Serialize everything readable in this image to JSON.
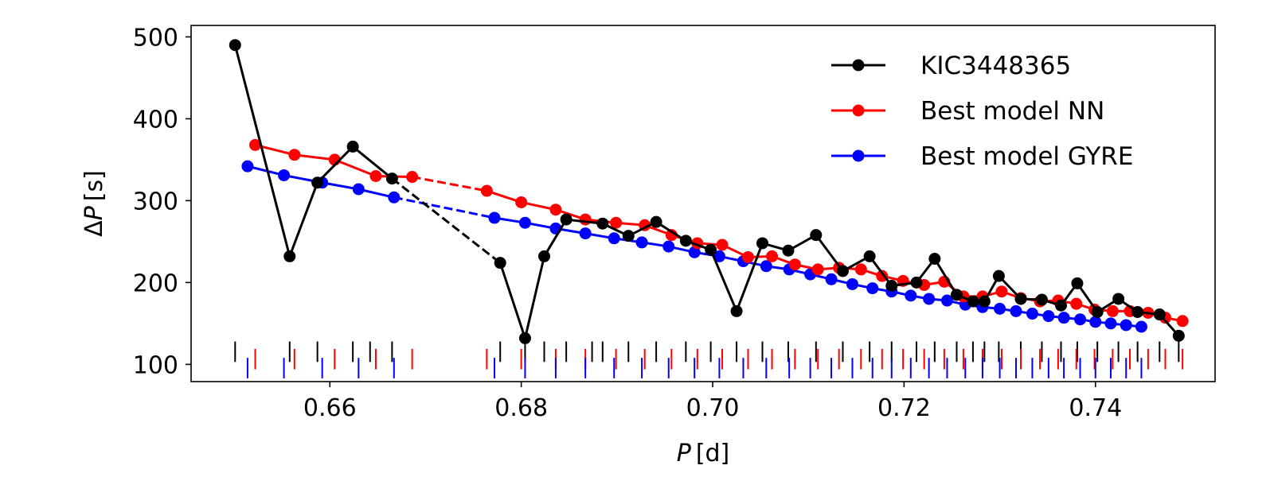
{
  "chart_data": {
    "type": "line",
    "xlabel_var": "P",
    "xlabel_unit": "[d]",
    "ylabel_prefix": "Δ",
    "ylabel_var": "P",
    "ylabel_unit": "[s]",
    "xlim": [
      0.6455,
      0.7525
    ],
    "ylim": [
      79,
      514
    ],
    "xticks": [
      0.66,
      0.68,
      0.7,
      0.72,
      0.74
    ],
    "xtick_labels": [
      "0.66",
      "0.68",
      "0.70",
      "0.72",
      "0.74"
    ],
    "yticks": [
      100,
      200,
      300,
      400,
      500
    ],
    "ytick_labels": [
      "100",
      "200",
      "300",
      "400",
      "500"
    ],
    "legend_position": "top-right",
    "series": [
      {
        "name": "KIC3448365",
        "color": "#000000",
        "segments": [
          [
            [
              0.6501,
              490
            ],
            [
              0.6558,
              232
            ],
            [
              0.6587,
              322
            ],
            [
              0.6624,
              366
            ],
            [
              0.6665,
              327
            ]
          ],
          [
            [
              0.6778,
              224
            ],
            [
              0.6804,
              132
            ],
            [
              0.6824,
              232
            ],
            [
              0.6847,
              277
            ],
            [
              0.6885,
              272
            ],
            [
              0.6912,
              257
            ],
            [
              0.6941,
              274
            ],
            [
              0.6972,
              251
            ],
            [
              0.6998,
              240
            ],
            [
              0.7025,
              165
            ],
            [
              0.7052,
              248
            ],
            [
              0.7079,
              239
            ],
            [
              0.7108,
              258
            ],
            [
              0.7136,
              214
            ],
            [
              0.7164,
              232
            ],
            [
              0.7187,
              196
            ],
            [
              0.7213,
              200
            ],
            [
              0.7232,
              229
            ],
            [
              0.7255,
              185
            ],
            [
              0.7272,
              177
            ],
            [
              0.7284,
              177
            ],
            [
              0.7299,
              208
            ],
            [
              0.7322,
              180
            ],
            [
              0.7344,
              179
            ],
            [
              0.7364,
              172
            ],
            [
              0.7381,
              199
            ],
            [
              0.7402,
              164
            ],
            [
              0.7424,
              180
            ],
            [
              0.7444,
              164
            ],
            [
              0.7467,
              161
            ],
            [
              0.7487,
              135
            ]
          ]
        ],
        "dashed_link": [
          [
            0.6665,
            327
          ],
          [
            0.6778,
            224
          ]
        ],
        "mode_periods": [
          0.6501,
          0.6558,
          0.6587,
          0.6624,
          0.6642,
          0.6665,
          0.6778,
          0.6804,
          0.6824,
          0.6847,
          0.6874,
          0.6885,
          0.6912,
          0.6941,
          0.6972,
          0.6998,
          0.7025,
          0.7052,
          0.7079,
          0.7108,
          0.7136,
          0.7164,
          0.7187,
          0.7213,
          0.7232,
          0.7255,
          0.7272,
          0.7284,
          0.7299,
          0.7322,
          0.7344,
          0.7364,
          0.7381,
          0.7402,
          0.7424,
          0.7444,
          0.7467,
          0.7487
        ]
      },
      {
        "name": "Best model NN",
        "color": "#ff0000",
        "segments": [
          [
            [
              0.6522,
              368
            ],
            [
              0.6563,
              356
            ],
            [
              0.6605,
              350
            ],
            [
              0.6648,
              330
            ],
            [
              0.6686,
              329
            ]
          ],
          [
            [
              0.6764,
              312
            ],
            [
              0.68,
              298
            ],
            [
              0.6836,
              289
            ],
            [
              0.6867,
              277
            ],
            [
              0.6899,
              273
            ],
            [
              0.6929,
              270
            ],
            [
              0.6957,
              258
            ],
            [
              0.6984,
              248
            ],
            [
              0.701,
              246
            ],
            [
              0.7037,
              231
            ],
            [
              0.7062,
              232
            ],
            [
              0.7086,
              222
            ],
            [
              0.711,
              216
            ],
            [
              0.7132,
              218
            ],
            [
              0.7155,
              216
            ],
            [
              0.7177,
              208
            ],
            [
              0.7199,
              202
            ],
            [
              0.7221,
              197
            ],
            [
              0.7242,
              201
            ],
            [
              0.7262,
              183
            ],
            [
              0.7282,
              183
            ],
            [
              0.7302,
              189
            ],
            [
              0.7322,
              181
            ],
            [
              0.7342,
              177
            ],
            [
              0.7361,
              178
            ],
            [
              0.738,
              174
            ],
            [
              0.7399,
              167
            ],
            [
              0.7418,
              165
            ],
            [
              0.7436,
              165
            ],
            [
              0.7455,
              163
            ],
            [
              0.7473,
              157
            ],
            [
              0.7491,
              153
            ]
          ]
        ],
        "dashed_link": [
          [
            0.6686,
            329
          ],
          [
            0.6764,
            312
          ]
        ],
        "mode_periods": [
          0.6522,
          0.6563,
          0.6605,
          0.6648,
          0.6686,
          0.6764,
          0.68,
          0.6836,
          0.6867,
          0.6899,
          0.6929,
          0.6957,
          0.6984,
          0.701,
          0.7037,
          0.7062,
          0.7086,
          0.711,
          0.7132,
          0.7155,
          0.7177,
          0.7199,
          0.7221,
          0.7242,
          0.7262,
          0.7282,
          0.7302,
          0.7322,
          0.7342,
          0.7361,
          0.738,
          0.7399,
          0.7418,
          0.7436,
          0.7455,
          0.7473,
          0.7491
        ]
      },
      {
        "name": "Best model GYRE",
        "color": "#0000ff",
        "segments": [
          [
            [
              0.6514,
              342
            ],
            [
              0.6552,
              331
            ],
            [
              0.6592,
              322
            ],
            [
              0.663,
              314
            ],
            [
              0.6667,
              304
            ]
          ],
          [
            [
              0.6772,
              279
            ],
            [
              0.6804,
              273
            ],
            [
              0.6836,
              266
            ],
            [
              0.6867,
              260
            ],
            [
              0.6897,
              254
            ],
            [
              0.6926,
              249
            ],
            [
              0.6954,
              244
            ],
            [
              0.6981,
              237
            ],
            [
              0.7007,
              232
            ],
            [
              0.7032,
              226
            ],
            [
              0.7056,
              220
            ],
            [
              0.708,
              216
            ],
            [
              0.7102,
              210
            ],
            [
              0.7124,
              204
            ],
            [
              0.7146,
              198
            ],
            [
              0.7167,
              193
            ],
            [
              0.7187,
              189
            ],
            [
              0.7207,
              184
            ],
            [
              0.7226,
              180
            ],
            [
              0.7245,
              178
            ],
            [
              0.7264,
              173
            ],
            [
              0.7282,
              170
            ],
            [
              0.73,
              168
            ],
            [
              0.7317,
              165
            ],
            [
              0.7334,
              162
            ],
            [
              0.7351,
              159
            ],
            [
              0.7367,
              157
            ],
            [
              0.7384,
              155
            ],
            [
              0.74,
              152
            ],
            [
              0.7416,
              150
            ],
            [
              0.7432,
              148
            ],
            [
              0.7448,
              146
            ]
          ]
        ],
        "dashed_link": [
          [
            0.6667,
            304
          ],
          [
            0.6772,
            279
          ]
        ],
        "mode_periods": [
          0.6514,
          0.6552,
          0.6592,
          0.663,
          0.6667,
          0.6772,
          0.6804,
          0.6836,
          0.6867,
          0.6897,
          0.6926,
          0.6954,
          0.6981,
          0.7007,
          0.7032,
          0.7056,
          0.708,
          0.7102,
          0.7124,
          0.7146,
          0.7167,
          0.7187,
          0.7207,
          0.7226,
          0.7245,
          0.7264,
          0.7282,
          0.73,
          0.7317,
          0.7334,
          0.7351,
          0.7367,
          0.7384,
          0.74,
          0.7416,
          0.7432,
          0.7448
        ]
      }
    ],
    "rug_rows": [
      {
        "series": 0,
        "ymin": 103,
        "ymax": 128
      },
      {
        "series": 1,
        "ymin": 94,
        "ymax": 119
      },
      {
        "series": 2,
        "ymin": 83,
        "ymax": 108
      }
    ]
  }
}
